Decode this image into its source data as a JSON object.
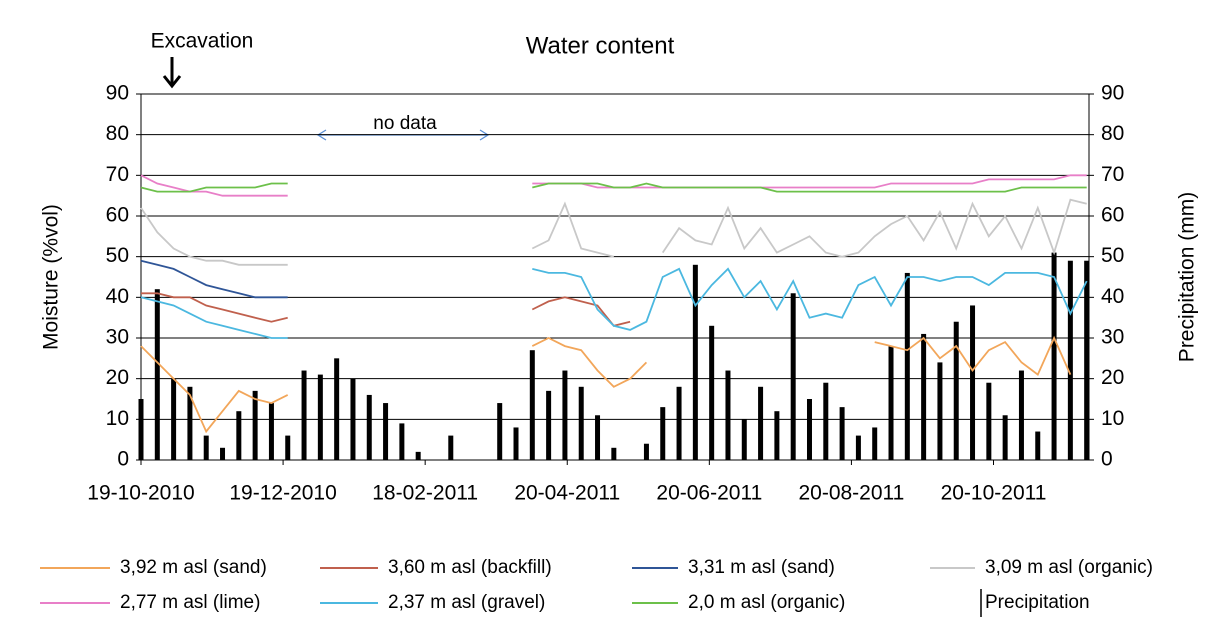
{
  "chart_data": {
    "type": "line",
    "title": "Water content",
    "y_label": "Moisture (%vol)",
    "y2_label": "Precipitation (mm)",
    "annotations": [
      "Excavation",
      "no data"
    ],
    "x": [
      "2010-10-19",
      "2010-10-26",
      "2010-11-02",
      "2010-11-09",
      "2010-11-16",
      "2010-11-23",
      "2010-11-30",
      "2010-12-07",
      "2010-12-14",
      "2010-12-21",
      "2010-12-28",
      "2011-01-04",
      "2011-01-11",
      "2011-01-18",
      "2011-01-25",
      "2011-02-01",
      "2011-02-08",
      "2011-02-15",
      "2011-02-22",
      "2011-03-01",
      "2011-03-08",
      "2011-03-15",
      "2011-03-22",
      "2011-03-29",
      "2011-04-05",
      "2011-04-12",
      "2011-04-19",
      "2011-04-26",
      "2011-05-03",
      "2011-05-10",
      "2011-05-17",
      "2011-05-24",
      "2011-05-31",
      "2011-06-07",
      "2011-06-14",
      "2011-06-21",
      "2011-06-28",
      "2011-07-05",
      "2011-07-12",
      "2011-07-19",
      "2011-07-26",
      "2011-08-02",
      "2011-08-09",
      "2011-08-16",
      "2011-08-23",
      "2011-08-30",
      "2011-09-06",
      "2011-09-13",
      "2011-09-20",
      "2011-09-27",
      "2011-10-04",
      "2011-10-11",
      "2011-10-18",
      "2011-10-25",
      "2011-11-01",
      "2011-11-08",
      "2011-11-15",
      "2011-11-22",
      "2011-11-29"
    ],
    "xlim": [
      "2010-10-19",
      "2011-11-30"
    ],
    "xticks": [
      {
        "value": "2010-10-19",
        "label": "19-10-2010"
      },
      {
        "value": "2010-12-19",
        "label": "19-12-2010"
      },
      {
        "value": "2011-02-18",
        "label": "18-02-2011"
      },
      {
        "value": "2011-04-20",
        "label": "20-04-2011"
      },
      {
        "value": "2011-06-20",
        "label": "20-06-2011"
      },
      {
        "value": "2011-08-20",
        "label": "20-08-2011"
      },
      {
        "value": "2011-10-20",
        "label": "20-10-2011"
      }
    ],
    "ylim": [
      0,
      90
    ],
    "yticks": [
      0,
      10,
      20,
      30,
      40,
      50,
      60,
      70,
      80,
      90
    ],
    "y2lim": [
      0,
      90
    ],
    "y2ticks": [
      0,
      10,
      20,
      30,
      40,
      50,
      60,
      70,
      80,
      90
    ],
    "grid": true,
    "series": [
      {
        "name": "3,92 m asl (sand)",
        "color": "#f2a65a",
        "values": [
          28,
          24,
          20,
          16,
          7,
          12,
          17,
          15,
          14,
          16,
          null,
          null,
          null,
          null,
          null,
          null,
          null,
          null,
          null,
          null,
          null,
          null,
          null,
          null,
          28,
          30,
          28,
          27,
          22,
          18,
          20,
          24,
          null,
          null,
          null,
          null,
          null,
          null,
          null,
          null,
          null,
          null,
          null,
          null,
          null,
          29,
          28,
          27,
          30,
          25,
          28,
          22,
          27,
          29,
          24,
          21,
          30,
          21,
          null
        ]
      },
      {
        "name": "3,60 m asl (backfill)",
        "color": "#c0604d",
        "values": [
          41,
          41,
          40,
          40,
          38,
          37,
          36,
          35,
          34,
          35,
          null,
          null,
          null,
          null,
          null,
          null,
          null,
          null,
          null,
          null,
          null,
          null,
          null,
          null,
          37,
          39,
          40,
          39,
          38,
          33,
          34,
          null,
          null,
          null,
          null,
          null,
          null,
          null,
          null,
          null,
          null,
          null,
          null,
          null,
          null,
          null,
          null,
          null,
          null,
          null,
          null,
          null,
          null,
          null,
          null,
          null,
          null,
          null,
          null
        ]
      },
      {
        "name": "3,31 m asl (sand)",
        "color": "#2f5597",
        "values": [
          49,
          48,
          47,
          45,
          43,
          42,
          41,
          40,
          40,
          40,
          null,
          null,
          null,
          null,
          null,
          null,
          null,
          null,
          null,
          null,
          null,
          null,
          null,
          null,
          null,
          null,
          null,
          null,
          null,
          null,
          null,
          null,
          null,
          null,
          null,
          null,
          null,
          null,
          null,
          null,
          null,
          null,
          null,
          null,
          null,
          null,
          null,
          null,
          null,
          null,
          null,
          null,
          null,
          null,
          null,
          null,
          null,
          null,
          null
        ]
      },
      {
        "name": "3,09 m asl (organic)",
        "color": "#c8c8c8",
        "values": [
          62,
          56,
          52,
          50,
          49,
          49,
          48,
          48,
          48,
          48,
          null,
          null,
          null,
          null,
          null,
          null,
          null,
          null,
          null,
          null,
          null,
          null,
          null,
          null,
          52,
          54,
          63,
          52,
          51,
          50,
          null,
          null,
          51,
          57,
          54,
          53,
          62,
          52,
          57,
          51,
          53,
          55,
          51,
          50,
          51,
          55,
          58,
          60,
          54,
          61,
          52,
          63,
          55,
          60,
          52,
          62,
          51,
          64,
          63
        ]
      },
      {
        "name": "2,77 m asl (lime)",
        "color": "#e87fc8",
        "values": [
          70,
          68,
          67,
          66,
          66,
          65,
          65,
          65,
          65,
          65,
          null,
          null,
          null,
          null,
          null,
          null,
          null,
          null,
          null,
          null,
          null,
          null,
          null,
          null,
          68,
          68,
          68,
          68,
          67,
          67,
          67,
          67,
          67,
          67,
          67,
          67,
          67,
          67,
          67,
          67,
          67,
          67,
          67,
          67,
          67,
          67,
          68,
          68,
          68,
          68,
          68,
          68,
          69,
          69,
          69,
          69,
          69,
          70,
          70
        ]
      },
      {
        "name": "2,37 m asl (gravel)",
        "color": "#4bb8e0",
        "values": [
          40,
          39,
          38,
          36,
          34,
          33,
          32,
          31,
          30,
          30,
          null,
          null,
          null,
          null,
          null,
          null,
          null,
          null,
          null,
          null,
          null,
          null,
          null,
          null,
          47,
          46,
          46,
          45,
          37,
          33,
          32,
          34,
          45,
          47,
          38,
          43,
          47,
          40,
          44,
          37,
          44,
          35,
          36,
          35,
          43,
          45,
          38,
          45,
          45,
          44,
          45,
          45,
          43,
          46,
          46,
          46,
          45,
          36,
          44
        ]
      },
      {
        "name": "2,0 m asl (organic)",
        "color": "#6cc04a",
        "values": [
          67,
          66,
          66,
          66,
          67,
          67,
          67,
          67,
          68,
          68,
          null,
          null,
          null,
          null,
          null,
          null,
          null,
          null,
          null,
          null,
          null,
          null,
          null,
          null,
          67,
          68,
          68,
          68,
          68,
          67,
          67,
          68,
          67,
          67,
          67,
          67,
          67,
          67,
          67,
          66,
          66,
          66,
          66,
          66,
          66,
          66,
          66,
          66,
          66,
          66,
          66,
          66,
          66,
          66,
          67,
          67,
          67,
          67,
          67
        ]
      },
      {
        "name": "Precipitation",
        "color": "#000000",
        "type": "bar",
        "axis": "y2",
        "values": [
          15,
          42,
          20,
          18,
          6,
          3,
          12,
          17,
          14,
          6,
          22,
          21,
          25,
          20,
          16,
          14,
          9,
          2,
          0,
          6,
          0,
          0,
          14,
          8,
          27,
          17,
          22,
          18,
          11,
          3,
          0,
          4,
          13,
          18,
          48,
          33,
          22,
          10,
          18,
          12,
          41,
          15,
          19,
          13,
          6,
          8,
          28,
          46,
          31,
          24,
          34,
          38,
          19,
          11,
          22,
          7,
          51,
          49,
          49
        ]
      }
    ]
  }
}
